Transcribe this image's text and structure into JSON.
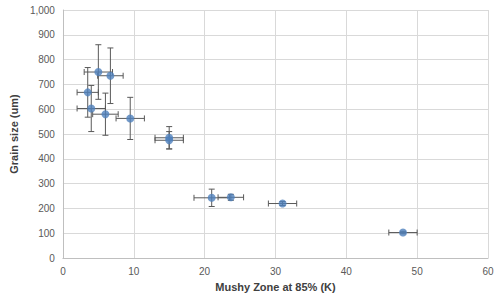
{
  "chart_data": {
    "type": "scatter",
    "x_label": "Mushy Zone at 85% (K)",
    "y_label": "Grain size (um)",
    "x": [
      3.5,
      5,
      4,
      6.7,
      6,
      9.5,
      15,
      15,
      21,
      23.7,
      31,
      48
    ],
    "values": [
      668,
      750,
      603,
      735,
      580,
      563,
      485,
      475,
      243,
      245,
      220,
      103
    ],
    "x_error": [
      1.5,
      2,
      2,
      1.8,
      1.8,
      2,
      2,
      2,
      2.5,
      1.8,
      2,
      2
    ],
    "y_error": [
      100,
      110,
      93,
      112,
      85,
      85,
      45,
      35,
      35,
      12,
      8,
      5
    ],
    "color": "#4f81bd",
    "marker": "circle",
    "xlim": [
      0,
      60
    ],
    "xticks": [
      0,
      10,
      20,
      30,
      40,
      50,
      60
    ],
    "ylim": [
      0,
      1000
    ],
    "yticks": [
      0,
      100,
      200,
      300,
      400,
      500,
      600,
      700,
      800,
      900,
      1000
    ],
    "grid": true
  }
}
